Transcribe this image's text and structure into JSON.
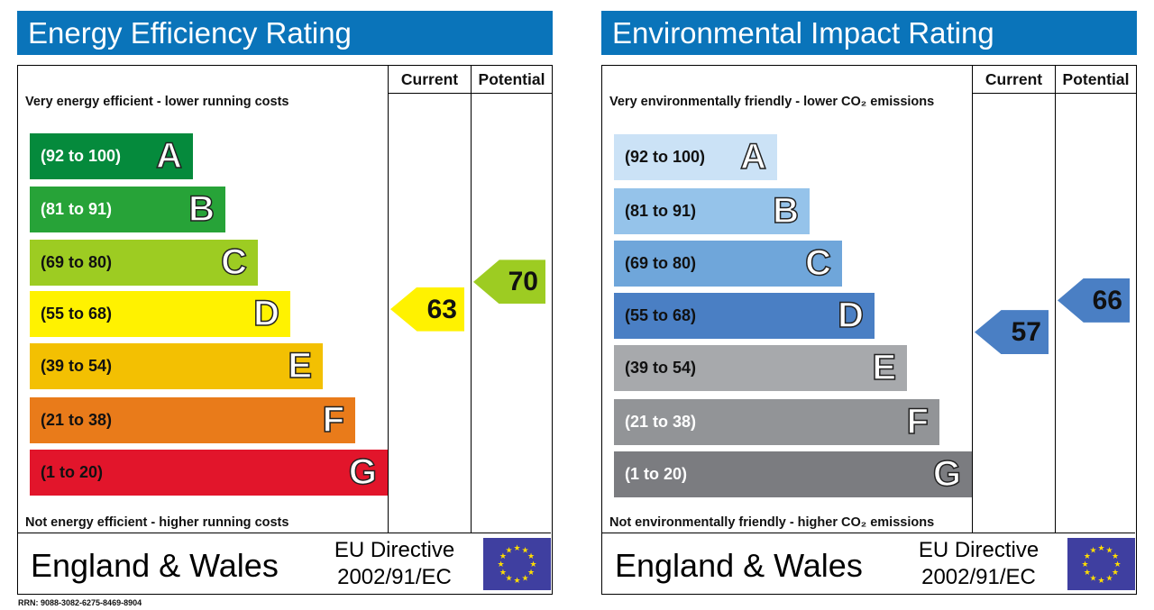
{
  "chart_data": [
    {
      "type": "bar",
      "title": "Energy Efficiency Rating",
      "columns": [
        "Current",
        "Potential"
      ],
      "top_note": "Very energy efficient - lower running costs",
      "bottom_note": "Not energy efficient - higher running costs",
      "bands": [
        {
          "letter": "A",
          "range": "(92 to 100)",
          "color": "#058a3c",
          "text_color": "#ffffff"
        },
        {
          "letter": "B",
          "range": "(81 to 91)",
          "color": "#27a338",
          "text_color": "#ffffff"
        },
        {
          "letter": "C",
          "range": "(69 to 80)",
          "color": "#9dcc22",
          "text_color": "#111111"
        },
        {
          "letter": "D",
          "range": "(55 to 68)",
          "color": "#fff200",
          "text_color": "#111111"
        },
        {
          "letter": "E",
          "range": "(39 to 54)",
          "color": "#f3c002",
          "text_color": "#111111"
        },
        {
          "letter": "F",
          "range": "(21 to 38)",
          "color": "#e97b1a",
          "text_color": "#111111"
        },
        {
          "letter": "G",
          "range": "(1 to 20)",
          "color": "#e2152b",
          "text_color": "#111111"
        }
      ],
      "current": {
        "value": 63,
        "label": "63",
        "color": "#fff200",
        "text_color": "#111111"
      },
      "potential": {
        "value": 70,
        "label": "70",
        "color": "#9dcc22",
        "text_color": "#111111"
      },
      "footer": {
        "country": "England & Wales",
        "directive_line1": "EU Directive",
        "directive_line2": "2002/91/EC"
      }
    },
    {
      "type": "bar",
      "title": "Environmental Impact Rating",
      "columns": [
        "Current",
        "Potential"
      ],
      "top_note": "Very environmentally friendly - lower CO₂ emissions",
      "bottom_note": "Not environmentally friendly - higher CO₂ emissions",
      "bands": [
        {
          "letter": "A",
          "range": "(92 to 100)",
          "color": "#cbe2f6",
          "text_color": "#111111"
        },
        {
          "letter": "B",
          "range": "(81 to 91)",
          "color": "#95c3ea",
          "text_color": "#111111"
        },
        {
          "letter": "C",
          "range": "(69 to 80)",
          "color": "#6fa6da",
          "text_color": "#111111"
        },
        {
          "letter": "D",
          "range": "(55 to 68)",
          "color": "#4a7fc4",
          "text_color": "#111111"
        },
        {
          "letter": "E",
          "range": "(39 to 54)",
          "color": "#a7a9ac",
          "text_color": "#111111"
        },
        {
          "letter": "F",
          "range": "(21 to 38)",
          "color": "#929497",
          "text_color": "#ffffff"
        },
        {
          "letter": "G",
          "range": "(1 to 20)",
          "color": "#7b7c80",
          "text_color": "#ffffff"
        }
      ],
      "current": {
        "value": 57,
        "label": "57",
        "color": "#4a7fc4",
        "text_color": "#111111"
      },
      "potential": {
        "value": 66,
        "label": "66",
        "color": "#4a7fc4",
        "text_color": "#111111"
      },
      "footer": {
        "country": "England & Wales",
        "directive_line1": "EU Directive",
        "directive_line2": "2002/91/EC"
      }
    }
  ],
  "rrn": "RRN: 9088-3082-6275-8469-8904",
  "eu_flag": {
    "icon": "eu-flag-icon",
    "color": "#3f3fa0",
    "star_color": "#ffdd00"
  }
}
